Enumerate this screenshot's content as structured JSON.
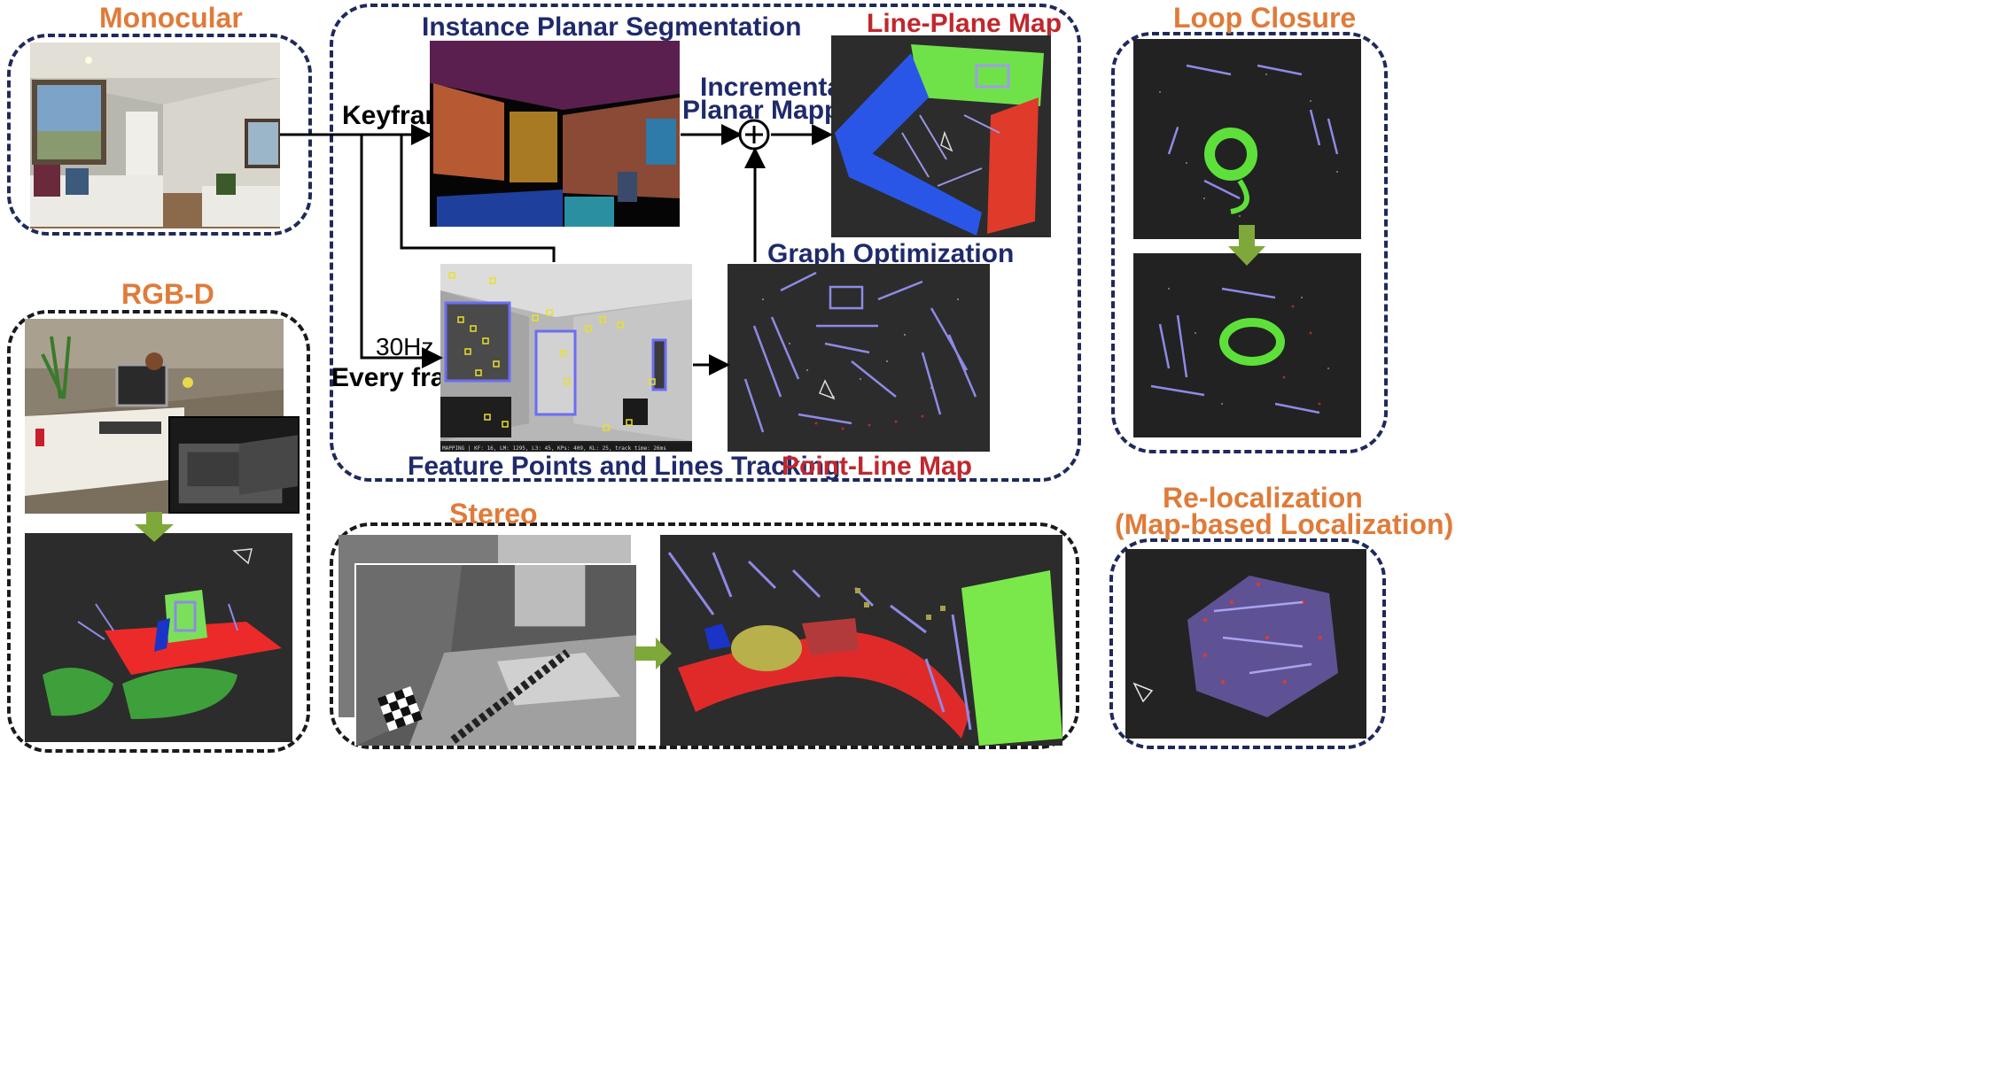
{
  "labels": {
    "monocular": "Monocular",
    "rgbd": "RGB-D",
    "stereo": "Stereo",
    "loop_closure": "Loop Closure",
    "reloc_line1": "Re-localization",
    "reloc_line2": "(Map-based Localization)",
    "instance_seg": "Instance Planar Segmentation",
    "line_plane_map": "Line-Plane Map",
    "incremental_line1": "Incremental",
    "incremental_line2": "Planar Mapping",
    "keyframe": "Keyframe",
    "hz": "30Hz",
    "every_frame": "Every frame",
    "graph_opt": "Graph Optimization",
    "feature_tracking": "Feature Points and Lines Tracking",
    "point_line_map": "Point-Line Map",
    "tracking_status": "MAPPING | KF: 16, LM: 1295, L3: 45, KPs: 409, KL: 25, track time: 26ms"
  },
  "colors": {
    "orange_title": "#e07b39",
    "navy_title": "#1f2a6b",
    "red_title": "#c0272d",
    "navy_border": "#1f2a5a",
    "arrow_green": "#7fa83a"
  }
}
